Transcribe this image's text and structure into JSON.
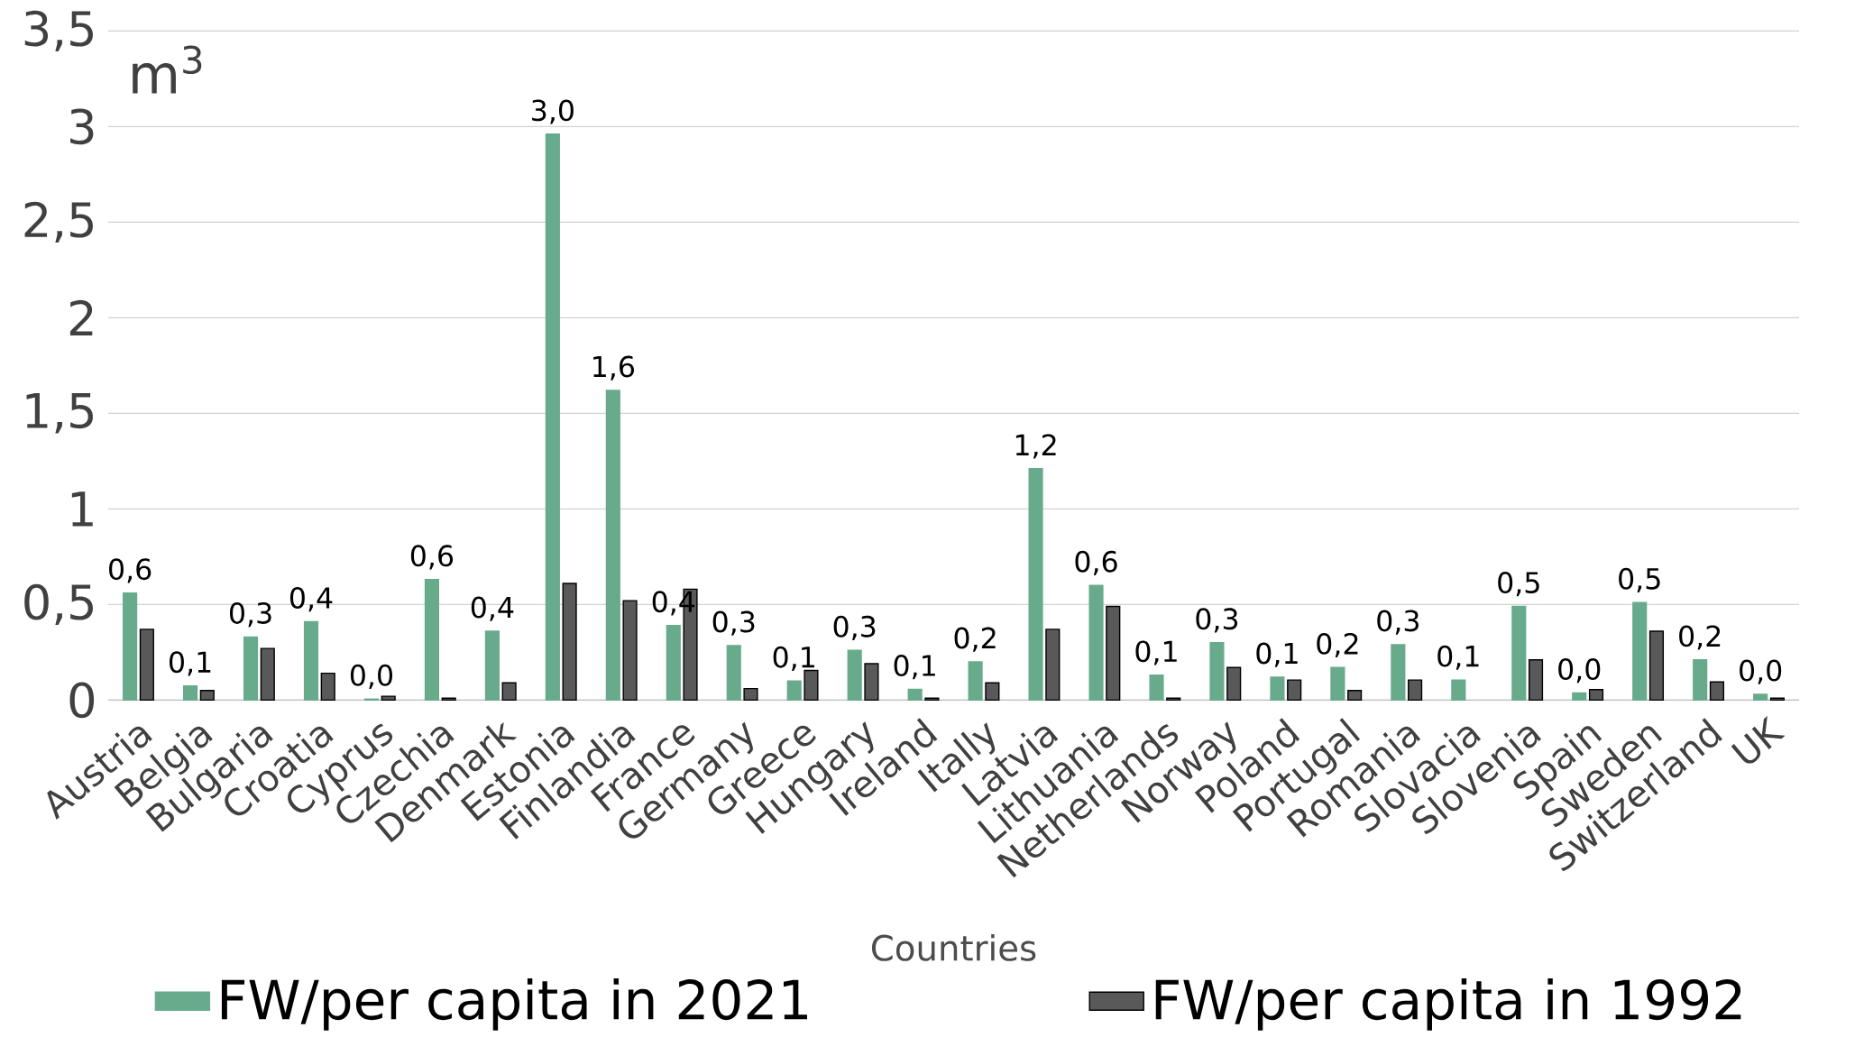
{
  "chart_data": {
    "type": "bar",
    "xlabel": "Countries",
    "ylabel": "m$^{3}$",
    "categories": [
      "Austria",
      "Belgia",
      "Bulgaria",
      "Croatia",
      "Cyprus",
      "Czechia",
      "Denmark",
      "Estonia",
      "Finlandia",
      "France",
      "Germany",
      "Greece",
      "Hungary",
      "Ireland",
      "Itally",
      "Latvia",
      "Lithuania",
      "Netherlands",
      "Norway",
      "Poland",
      "Portugal",
      "Romania",
      "Slovacia",
      "Slovenia",
      "Spain",
      "Sweden",
      "Switzerland",
      "UK"
    ],
    "series": [
      {
        "name": "FW/per capita in 2021",
        "color": "#68aa8c",
        "values": [
          0.56,
          0.074,
          0.33,
          0.41,
          0.005,
          0.63,
          0.36,
          2.96,
          1.62,
          0.39,
          0.285,
          0.1,
          0.26,
          0.056,
          0.2,
          1.21,
          0.6,
          0.13,
          0.3,
          0.12,
          0.17,
          0.29,
          0.105,
          0.49,
          0.037,
          0.51,
          0.21,
          0.03
        ],
        "value_labels": [
          "0,6",
          "0,1",
          "0,3",
          "0,4",
          "0,0",
          "0,6",
          "0,4",
          "3,0",
          "1,6",
          "0,4",
          "0,3",
          "0,1",
          "0,3",
          "0,1",
          "0,2",
          "1,2",
          "0,6",
          "0,1",
          "0,3",
          "0,1",
          "0,2",
          "0,3",
          "0,1",
          "0,5",
          "0,0",
          "0,5",
          "0,2",
          "0,0"
        ]
      },
      {
        "name": "FW/per capita in 1992",
        "color": "#595959",
        "values": [
          0.37,
          0.05,
          0.27,
          0.14,
          0.02,
          0.01,
          0.09,
          0.61,
          0.52,
          0.58,
          0.06,
          0.155,
          0.19,
          0.01,
          0.09,
          0.37,
          0.49,
          0.01,
          0.17,
          0.105,
          0.05,
          0.105,
          null,
          0.21,
          0.055,
          0.36,
          0.095,
          0.01
        ]
      }
    ],
    "ylim": [
      0,
      3.5
    ],
    "yticks": [
      0,
      {
        "value": 0.5,
        "label": "0,5"
      },
      1,
      {
        "value": 1.5,
        "label": "1,5"
      },
      2,
      {
        "value": 2.5,
        "label": "2,5"
      },
      3,
      {
        "value": 3.5,
        "label": "3,5"
      }
    ],
    "grid": "y",
    "legend": "bottom"
  }
}
